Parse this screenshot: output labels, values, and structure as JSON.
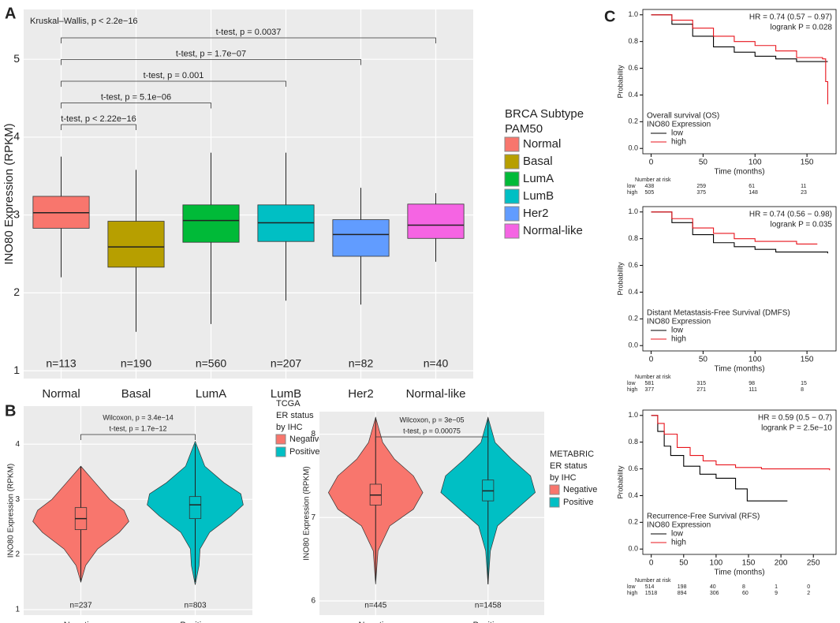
{
  "panel_labels": [
    "A",
    "B",
    "C"
  ],
  "chart_data": [
    {
      "type": "box",
      "ylabel": "INO80 Expression (RPKM)",
      "ylim": [
        0.9,
        5.64
      ],
      "yticks": [
        1,
        2,
        3,
        4,
        5
      ],
      "categories": [
        "Normal",
        "Basal",
        "LumA",
        "LumB",
        "Her2",
        "Normal-like"
      ],
      "colors": [
        "#f8766d",
        "#b79f00",
        "#00ba38",
        "#00bfc4",
        "#619cff",
        "#f564e3"
      ],
      "boxes": [
        {
          "q1": 2.83,
          "median": 3.03,
          "q3": 3.24,
          "low": 2.2,
          "high": 3.75
        },
        {
          "q1": 2.33,
          "median": 2.59,
          "q3": 2.92,
          "low": 1.5,
          "high": 3.58
        },
        {
          "q1": 2.65,
          "median": 2.93,
          "q3": 3.13,
          "low": 1.6,
          "high": 3.8
        },
        {
          "q1": 2.66,
          "median": 2.9,
          "q3": 3.13,
          "low": 1.9,
          "high": 3.8
        },
        {
          "q1": 2.47,
          "median": 2.75,
          "q3": 2.94,
          "low": 1.85,
          "high": 3.35
        },
        {
          "q1": 2.7,
          "median": 2.87,
          "q3": 3.14,
          "low": 2.4,
          "high": 3.28
        }
      ],
      "n_labels": [
        "n=113",
        "n=190",
        "n=560",
        "n=207",
        "n=82",
        "n=40"
      ],
      "annotation": "Kruskal–Wallis, p < 2.2e−16",
      "comparisons": [
        {
          "from": "Normal",
          "to": "Basal",
          "labels": [
            "t-test, p < 2.22e−16"
          ]
        },
        {
          "from": "Normal",
          "to": "LumA",
          "labels": [
            "t-test, p = 5.1e−06"
          ]
        },
        {
          "from": "Normal",
          "to": "LumB",
          "labels": [
            "t-test, p = 0.001"
          ]
        },
        {
          "from": "Normal",
          "to": "Her2",
          "labels": [
            "t-test, p = 1.7e−07"
          ]
        },
        {
          "from": "Normal",
          "to": "Normal-like",
          "labels": [
            "t-test, p = 0.0037"
          ]
        }
      ],
      "legend_title": [
        "BRCA Subtype",
        "PAM50"
      ]
    },
    {
      "type": "violin",
      "ylabel": "INO80 Expression (RPKM)",
      "ylim": [
        0.9,
        4.69
      ],
      "yticks": [
        1,
        2,
        3,
        4
      ],
      "categories": [
        "Negative",
        "Positive"
      ],
      "colors": [
        "#f8766d",
        "#00bfc4"
      ],
      "violins": [
        {
          "y": [
            1.5,
            1.8,
            2.1,
            2.4,
            2.6,
            2.8,
            3.0,
            3.2,
            3.4,
            3.6
          ],
          "width": [
            0,
            0.1,
            0.35,
            0.8,
            1.0,
            0.9,
            0.6,
            0.4,
            0.2,
            0
          ]
        },
        {
          "y": [
            1.45,
            1.8,
            2.1,
            2.4,
            2.7,
            2.9,
            3.1,
            3.3,
            3.6,
            4.05
          ],
          "width": [
            0,
            0.08,
            0.1,
            0.3,
            0.75,
            1.0,
            0.95,
            0.6,
            0.2,
            0
          ]
        }
      ],
      "boxes": [
        {
          "q1": 2.45,
          "median": 2.65,
          "q3": 2.85,
          "low": 1.5,
          "high": 3.6
        },
        {
          "q1": 2.65,
          "median": 2.9,
          "q3": 3.05,
          "low": 1.5,
          "high": 4.0
        }
      ],
      "n_labels": [
        "n=237",
        "n=803"
      ],
      "comparisons": [
        {
          "from": "Negative",
          "to": "Positive",
          "labels": [
            "Wilcoxon, p = 3.4e−14",
            "t-test, p = 1.7e−12"
          ]
        }
      ],
      "legend_title": [
        "TCGA",
        "ER status",
        "by IHC"
      ]
    },
    {
      "type": "violin",
      "ylabel": "INO80 Expression (RPKM)",
      "ylim": [
        5.83,
        8.27
      ],
      "yticks": [
        6,
        7,
        8
      ],
      "categories": [
        "Negative",
        "Positive"
      ],
      "colors": [
        "#f8766d",
        "#00bfc4"
      ],
      "violins": [
        {
          "y": [
            6.2,
            6.6,
            6.9,
            7.1,
            7.3,
            7.5,
            7.7,
            7.9,
            8.2
          ],
          "width": [
            0,
            0.05,
            0.3,
            0.8,
            1.0,
            0.8,
            0.4,
            0.15,
            0
          ]
        },
        {
          "y": [
            6.2,
            6.6,
            6.9,
            7.1,
            7.3,
            7.5,
            7.7,
            7.9,
            8.2
          ],
          "width": [
            0,
            0.05,
            0.2,
            0.6,
            1.0,
            0.9,
            0.5,
            0.15,
            0
          ]
        }
      ],
      "boxes": [
        {
          "q1": 7.15,
          "median": 7.27,
          "q3": 7.4,
          "low": 6.25,
          "high": 8.2
        },
        {
          "q1": 7.2,
          "median": 7.32,
          "q3": 7.45,
          "low": 6.2,
          "high": 8.2
        }
      ],
      "n_labels": [
        "n=445",
        "n=1458"
      ],
      "comparisons": [
        {
          "from": "Negative",
          "to": "Positive",
          "labels": [
            "Wilcoxon, p = 3e−05",
            "t-test, p = 0.00075"
          ]
        }
      ],
      "legend_title": [
        "METABRIC",
        "ER status",
        "by IHC"
      ]
    },
    {
      "type": "km",
      "xlabel": "Time (months)",
      "ylabel": "Probability",
      "xlim": [
        -8,
        178
      ],
      "ylim": [
        -0.04,
        1.04
      ],
      "xticks": [
        0,
        50,
        100,
        150
      ],
      "yticks": [
        {
          "value": 0,
          "label": "0.0"
        },
        {
          "value": 0.2,
          "label": "0.2"
        },
        {
          "value": 0.4,
          "label": "0.4"
        },
        {
          "value": 0.6,
          "label": "0.6"
        },
        {
          "value": 0.8,
          "label": "0.8"
        },
        {
          "value": 1,
          "label": "1.0"
        }
      ],
      "hr": "HR = 0.74 (0.57 − 0.97)",
      "logrank": "logrank P = 0.028",
      "legend_title": [
        "Overall survival (OS)",
        "INO80 Expression"
      ],
      "risk_title": "Number at risk",
      "series": [
        {
          "name": "low",
          "color": "#000000",
          "x": [
            0,
            20,
            40,
            60,
            80,
            100,
            120,
            140,
            170
          ],
          "values": [
            1,
            0.93,
            0.84,
            0.76,
            0.72,
            0.69,
            0.67,
            0.65,
            0.65
          ],
          "at_risk": [
            438,
            259,
            61,
            11
          ]
        },
        {
          "name": "high",
          "color": "#e8141c",
          "x": [
            0,
            20,
            40,
            60,
            80,
            100,
            120,
            140,
            165,
            168,
            170
          ],
          "values": [
            1,
            0.96,
            0.9,
            0.84,
            0.8,
            0.77,
            0.73,
            0.68,
            0.67,
            0.5,
            0.33
          ],
          "at_risk": [
            505,
            375,
            148,
            23
          ]
        }
      ]
    },
    {
      "type": "km",
      "xlabel": "Time (months)",
      "ylabel": "Probability",
      "xlim": [
        -8,
        178
      ],
      "ylim": [
        -0.04,
        1.04
      ],
      "xticks": [
        0,
        50,
        100,
        150
      ],
      "yticks": [
        {
          "value": 0,
          "label": "0.0"
        },
        {
          "value": 0.2,
          "label": "0.2"
        },
        {
          "value": 0.4,
          "label": "0.4"
        },
        {
          "value": 0.6,
          "label": "0.6"
        },
        {
          "value": 0.8,
          "label": "0.8"
        },
        {
          "value": 1,
          "label": "1.0"
        }
      ],
      "hr": "HR = 0.74 (0.56 − 0.98)",
      "logrank": "logrank P = 0.035",
      "legend_title": [
        "Distant Metastasis-Free Survival (DMFS)",
        "INO80 Expression"
      ],
      "risk_title": "Number at risk",
      "series": [
        {
          "name": "low",
          "color": "#000000",
          "x": [
            0,
            20,
            40,
            60,
            80,
            100,
            120,
            170
          ],
          "values": [
            1,
            0.92,
            0.83,
            0.77,
            0.74,
            0.72,
            0.7,
            0.69
          ],
          "at_risk": [
            581,
            315,
            98,
            15
          ]
        },
        {
          "name": "high",
          "color": "#e8141c",
          "x": [
            0,
            20,
            40,
            60,
            80,
            100,
            140,
            160
          ],
          "values": [
            1,
            0.95,
            0.88,
            0.84,
            0.8,
            0.78,
            0.76,
            0.76
          ],
          "at_risk": [
            377,
            271,
            111,
            8
          ]
        }
      ]
    },
    {
      "type": "km",
      "xlabel": "Time (months)",
      "ylabel": "Probability",
      "xlim": [
        -13,
        285
      ],
      "ylim": [
        -0.04,
        1.04
      ],
      "xticks": [
        0,
        50,
        100,
        150,
        200,
        250
      ],
      "yticks": [
        {
          "value": 0,
          "label": "0.0"
        },
        {
          "value": 0.2,
          "label": "0.2"
        },
        {
          "value": 0.4,
          "label": "0.4"
        },
        {
          "value": 0.6,
          "label": "0.6"
        },
        {
          "value": 0.8,
          "label": "0.8"
        },
        {
          "value": 1,
          "label": "1.0"
        }
      ],
      "hr": "HR = 0.59 (0.5 − 0.7)",
      "logrank": "logrank P = 2.5e−10",
      "legend_title": [
        "Recurrence-Free Survival (RFS)",
        "INO80 Expression"
      ],
      "risk_title": "Number at risk",
      "series": [
        {
          "name": "low",
          "color": "#000000",
          "x": [
            0,
            10,
            20,
            30,
            50,
            75,
            100,
            130,
            148,
            210
          ],
          "values": [
            1,
            0.88,
            0.77,
            0.7,
            0.62,
            0.56,
            0.53,
            0.45,
            0.36,
            0.36
          ],
          "at_risk": [
            514,
            198,
            40,
            8,
            1,
            0
          ]
        },
        {
          "name": "high",
          "color": "#e8141c",
          "x": [
            0,
            10,
            20,
            40,
            60,
            80,
            100,
            130,
            170,
            275
          ],
          "values": [
            1,
            0.94,
            0.86,
            0.76,
            0.7,
            0.66,
            0.63,
            0.61,
            0.6,
            0.59
          ],
          "at_risk": [
            1518,
            894,
            306,
            60,
            9,
            2
          ]
        }
      ]
    }
  ]
}
